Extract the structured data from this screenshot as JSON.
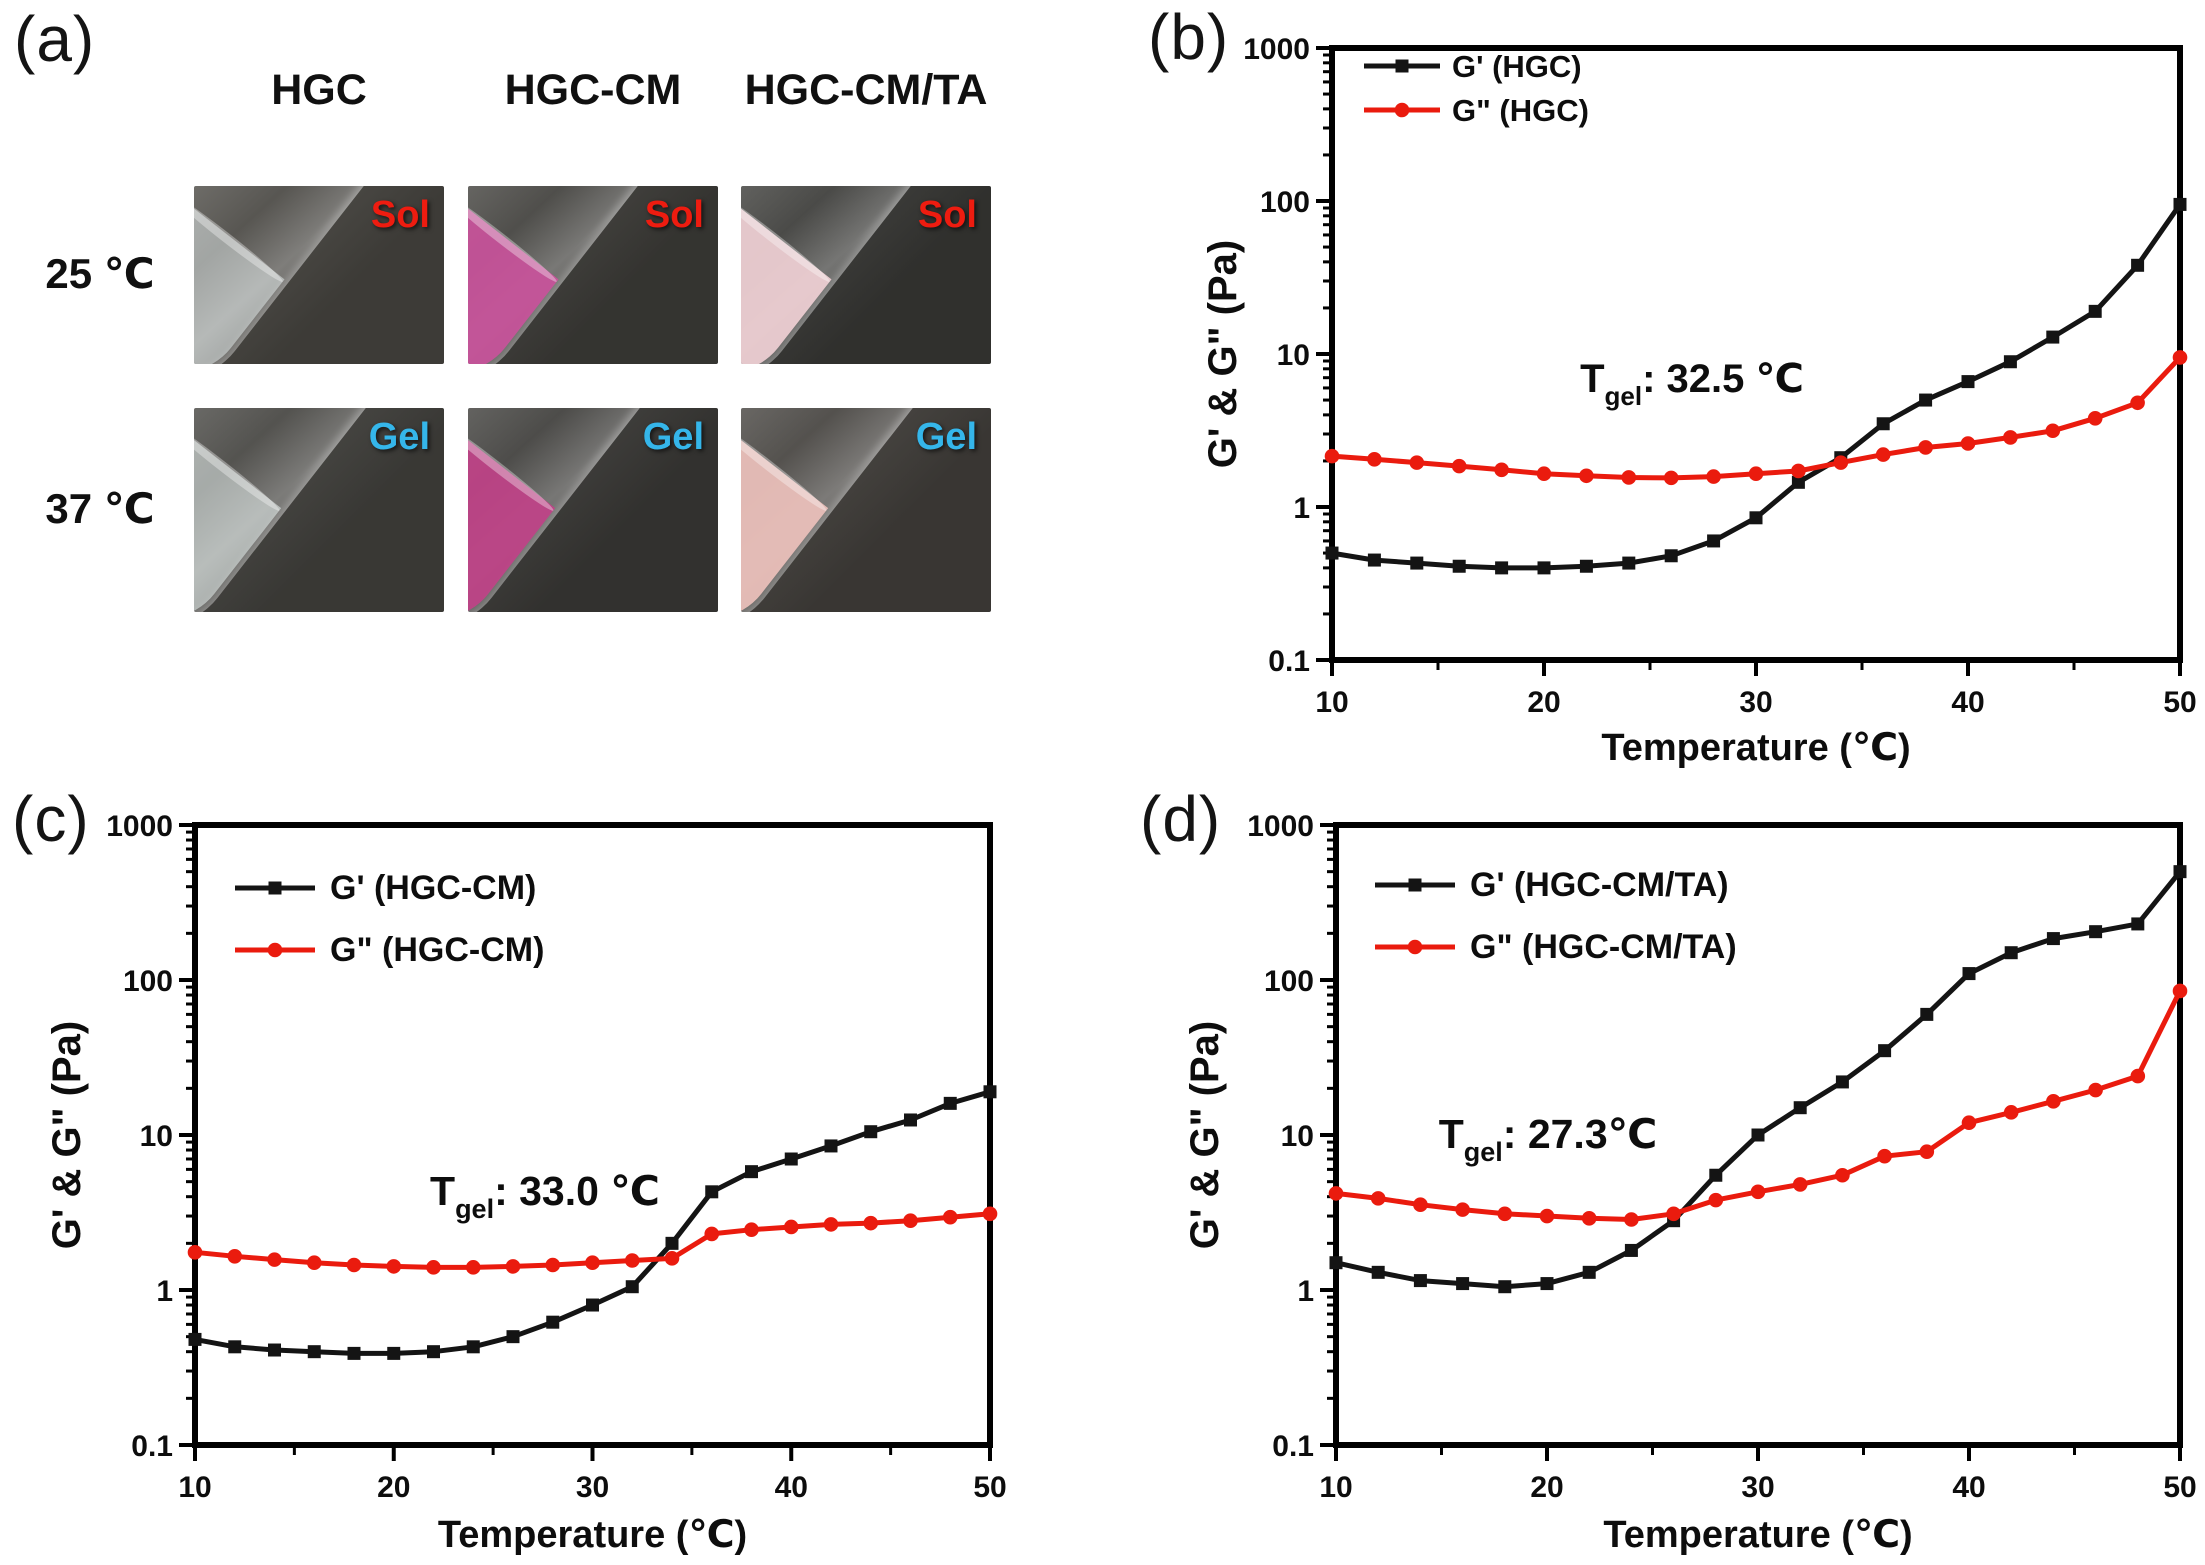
{
  "panel_a": {
    "label": "(a)",
    "column_headers": [
      "HGC",
      "HGC-CM",
      "HGC-CM/TA"
    ],
    "row_labels": [
      "25 ℃",
      "37 ℃"
    ],
    "state_colors": {
      "Sol": "#ee1c10",
      "Gel": "#35b6ea"
    },
    "cells": [
      [
        {
          "state": "Sol",
          "liquid": "rgba(236,244,243,0.50)",
          "bg": "#4a4843"
        },
        {
          "state": "Sol",
          "liquid": "rgba(201,83,155,0.92)",
          "bg": "#403f3b"
        },
        {
          "state": "Sol",
          "liquid": "rgba(236,205,210,0.95)",
          "bg": "#3a3a37"
        }
      ],
      [
        {
          "state": "Gel",
          "liquid": "rgba(233,243,241,0.55)",
          "bg": "#454440"
        },
        {
          "state": "Gel",
          "liquid": "rgba(192,67,136,0.93)",
          "bg": "#3d3c39"
        },
        {
          "state": "Gel",
          "liquid": "rgba(233,191,185,0.95)",
          "bg": "#45423e"
        }
      ]
    ]
  },
  "chart_data": [
    {
      "id": "b",
      "panel_label": "(b)",
      "type": "line",
      "x_label": "Temperature (℃)",
      "y_label": "G' & G\" (Pa)",
      "x_range": [
        10,
        50
      ],
      "y_range": [
        0.1,
        1000
      ],
      "y_scale": "log",
      "x_ticks": [
        10,
        20,
        30,
        40,
        50
      ],
      "y_ticks": [
        "0.1",
        "1",
        "10",
        "100",
        "1000"
      ],
      "grid": false,
      "legend_position": "top-left",
      "annotation": {
        "pre": "T",
        "sub": "gel",
        "post": ": 32.5 ℃"
      },
      "x": [
        10,
        12,
        14,
        16,
        18,
        20,
        22,
        24,
        26,
        28,
        30,
        32,
        34,
        36,
        38,
        40,
        42,
        44,
        46,
        48,
        50
      ],
      "series": [
        {
          "name": "G' (HGC)",
          "color": "#141414",
          "marker": "square",
          "values": [
            0.5,
            0.45,
            0.43,
            0.41,
            0.4,
            0.4,
            0.41,
            0.43,
            0.48,
            0.6,
            0.85,
            1.45,
            2.1,
            3.5,
            5.0,
            6.6,
            8.9,
            12.9,
            19,
            38,
            95
          ]
        },
        {
          "name": "G\" (HGC)",
          "color": "#ea1b0e",
          "marker": "circle",
          "values": [
            2.15,
            2.05,
            1.95,
            1.85,
            1.75,
            1.65,
            1.6,
            1.56,
            1.55,
            1.58,
            1.65,
            1.72,
            1.95,
            2.2,
            2.45,
            2.6,
            2.85,
            3.15,
            3.8,
            4.8,
            9.5
          ]
        }
      ]
    },
    {
      "id": "c",
      "panel_label": "(c)",
      "type": "line",
      "x_label": "Temperature (℃)",
      "y_label": "G' & G\" (Pa)",
      "x_range": [
        10,
        50
      ],
      "y_range": [
        0.1,
        1000
      ],
      "y_scale": "log",
      "x_ticks": [
        10,
        20,
        30,
        40,
        50
      ],
      "y_ticks": [
        "0.1",
        "1",
        "10",
        "100",
        "1000"
      ],
      "grid": false,
      "legend_position": "top-left",
      "annotation": {
        "pre": "T",
        "sub": "gel",
        "post": ": 33.0 ℃"
      },
      "x": [
        10,
        12,
        14,
        16,
        18,
        20,
        22,
        24,
        26,
        28,
        30,
        32,
        34,
        36,
        38,
        40,
        42,
        44,
        46,
        48,
        50
      ],
      "series": [
        {
          "name": "G' (HGC-CM)",
          "color": "#141414",
          "marker": "square",
          "values": [
            0.48,
            0.43,
            0.41,
            0.4,
            0.39,
            0.39,
            0.4,
            0.43,
            0.5,
            0.62,
            0.8,
            1.05,
            2.0,
            4.3,
            5.8,
            7.0,
            8.5,
            10.5,
            12.5,
            16,
            19
          ]
        },
        {
          "name": "G\" (HGC-CM)",
          "color": "#ea1b0e",
          "marker": "circle",
          "values": [
            1.75,
            1.65,
            1.57,
            1.5,
            1.45,
            1.42,
            1.4,
            1.4,
            1.42,
            1.45,
            1.5,
            1.55,
            1.6,
            2.3,
            2.45,
            2.55,
            2.65,
            2.7,
            2.8,
            2.95,
            3.1
          ]
        }
      ]
    },
    {
      "id": "d",
      "panel_label": "(d)",
      "type": "line",
      "x_label": "Temperature (℃)",
      "y_label": "G' & G\" (Pa)",
      "x_range": [
        10,
        50
      ],
      "y_range": [
        0.1,
        1000
      ],
      "y_scale": "log",
      "x_ticks": [
        10,
        20,
        30,
        40,
        50
      ],
      "y_ticks": [
        "0.1",
        "1",
        "10",
        "100",
        "1000"
      ],
      "grid": false,
      "legend_position": "top-left",
      "annotation": {
        "pre": "T",
        "sub": "gel",
        "post": ": 27.3℃"
      },
      "x": [
        10,
        12,
        14,
        16,
        18,
        20,
        22,
        24,
        26,
        28,
        30,
        32,
        34,
        36,
        38,
        40,
        42,
        44,
        46,
        48,
        50
      ],
      "series": [
        {
          "name": "G' (HGC-CM/TA)",
          "color": "#141414",
          "marker": "square",
          "values": [
            1.5,
            1.3,
            1.15,
            1.1,
            1.05,
            1.1,
            1.3,
            1.8,
            2.8,
            5.5,
            10,
            15,
            22,
            35,
            60,
            110,
            150,
            185,
            205,
            230,
            500
          ]
        },
        {
          "name": "G\" (HGC-CM/TA)",
          "color": "#ea1b0e",
          "marker": "circle",
          "values": [
            4.2,
            3.9,
            3.55,
            3.3,
            3.1,
            3.0,
            2.9,
            2.85,
            3.1,
            3.8,
            4.3,
            4.8,
            5.5,
            7.3,
            7.8,
            12,
            14,
            16.5,
            19.5,
            24,
            85
          ]
        }
      ]
    }
  ]
}
